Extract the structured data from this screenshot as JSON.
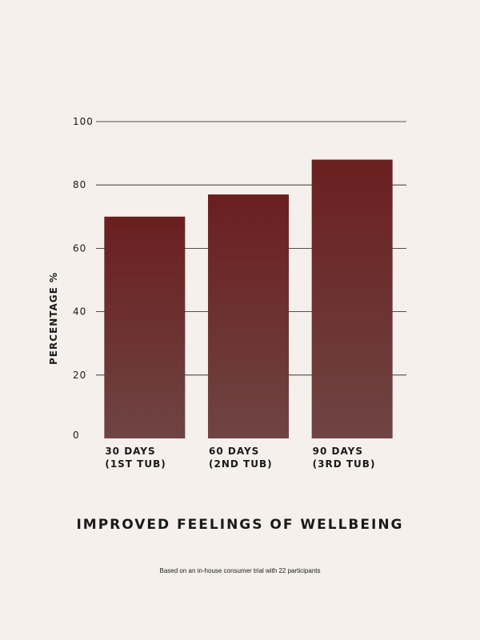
{
  "chart_data": {
    "type": "bar",
    "title": "IMPROVED FEELINGS OF WELLBEING",
    "subtitle": "Based on an in-house consumer trial with 22 participants",
    "ylabel": "PERCENTAGE %",
    "xlabel": "",
    "ylim": [
      0,
      100
    ],
    "yticks": [
      "0",
      "20",
      "40",
      "60",
      "80",
      "100"
    ],
    "ytick_values": [
      0,
      20,
      40,
      60,
      80,
      100
    ],
    "grid": true,
    "categories": [
      {
        "line1": "30 DAYS",
        "line2": "(1ST TUB)"
      },
      {
        "line1": "60 DAYS",
        "line2": "(2ND TUB)"
      },
      {
        "line1": "90 DAYS",
        "line2": "(3RD TUB)"
      }
    ],
    "values": [
      70,
      77,
      88
    ],
    "colors": {
      "bar_top": "#6b1f1f",
      "bar_bottom": "#6e4443",
      "grid": "#1a1a1a",
      "text": "#1a1a1a",
      "background": "#f5f0eb"
    }
  }
}
